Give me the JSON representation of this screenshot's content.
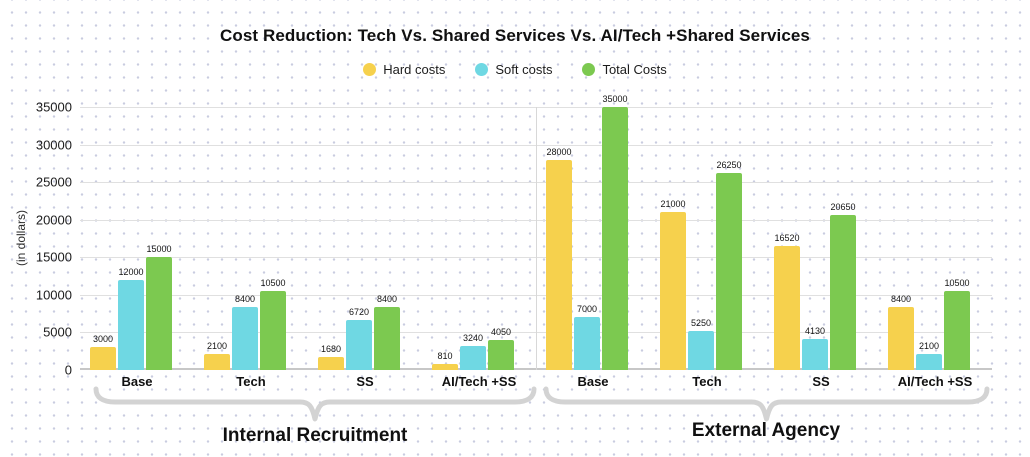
{
  "chart_data": {
    "type": "bar",
    "title": "Cost Reduction: Tech Vs. Shared Services Vs. AI/Tech +Shared Services",
    "ylabel": "(in dollars)",
    "xlabel": "",
    "ylim": [
      0,
      35000
    ],
    "ytick_step": 5000,
    "yticks": [
      0,
      5000,
      10000,
      15000,
      20000,
      25000,
      30000,
      35000
    ],
    "grid": true,
    "legend_position": "top",
    "categories": [
      "Base",
      "Tech",
      "SS",
      "AI/Tech +SS",
      "Base",
      "Tech",
      "SS",
      "AI/Tech +SS"
    ],
    "series": [
      {
        "name": "Hard costs",
        "color": "#f6d14d",
        "values": [
          3000,
          2100,
          1680,
          810,
          28000,
          21000,
          16520,
          8400
        ]
      },
      {
        "name": "Soft costs",
        "color": "#6fd8e3",
        "values": [
          12000,
          8400,
          6720,
          3240,
          7000,
          5250,
          4130,
          2100
        ]
      },
      {
        "name": "Total Costs",
        "color": "#7cc950",
        "values": [
          15000,
          10500,
          8400,
          4050,
          35000,
          26250,
          20650,
          10500
        ]
      }
    ],
    "group_sections": [
      {
        "label": "Internal Recruitment",
        "span": [
          0,
          3
        ]
      },
      {
        "label": "External Agency",
        "span": [
          4,
          7
        ]
      }
    ],
    "brace_color": "#d3d3d3"
  }
}
